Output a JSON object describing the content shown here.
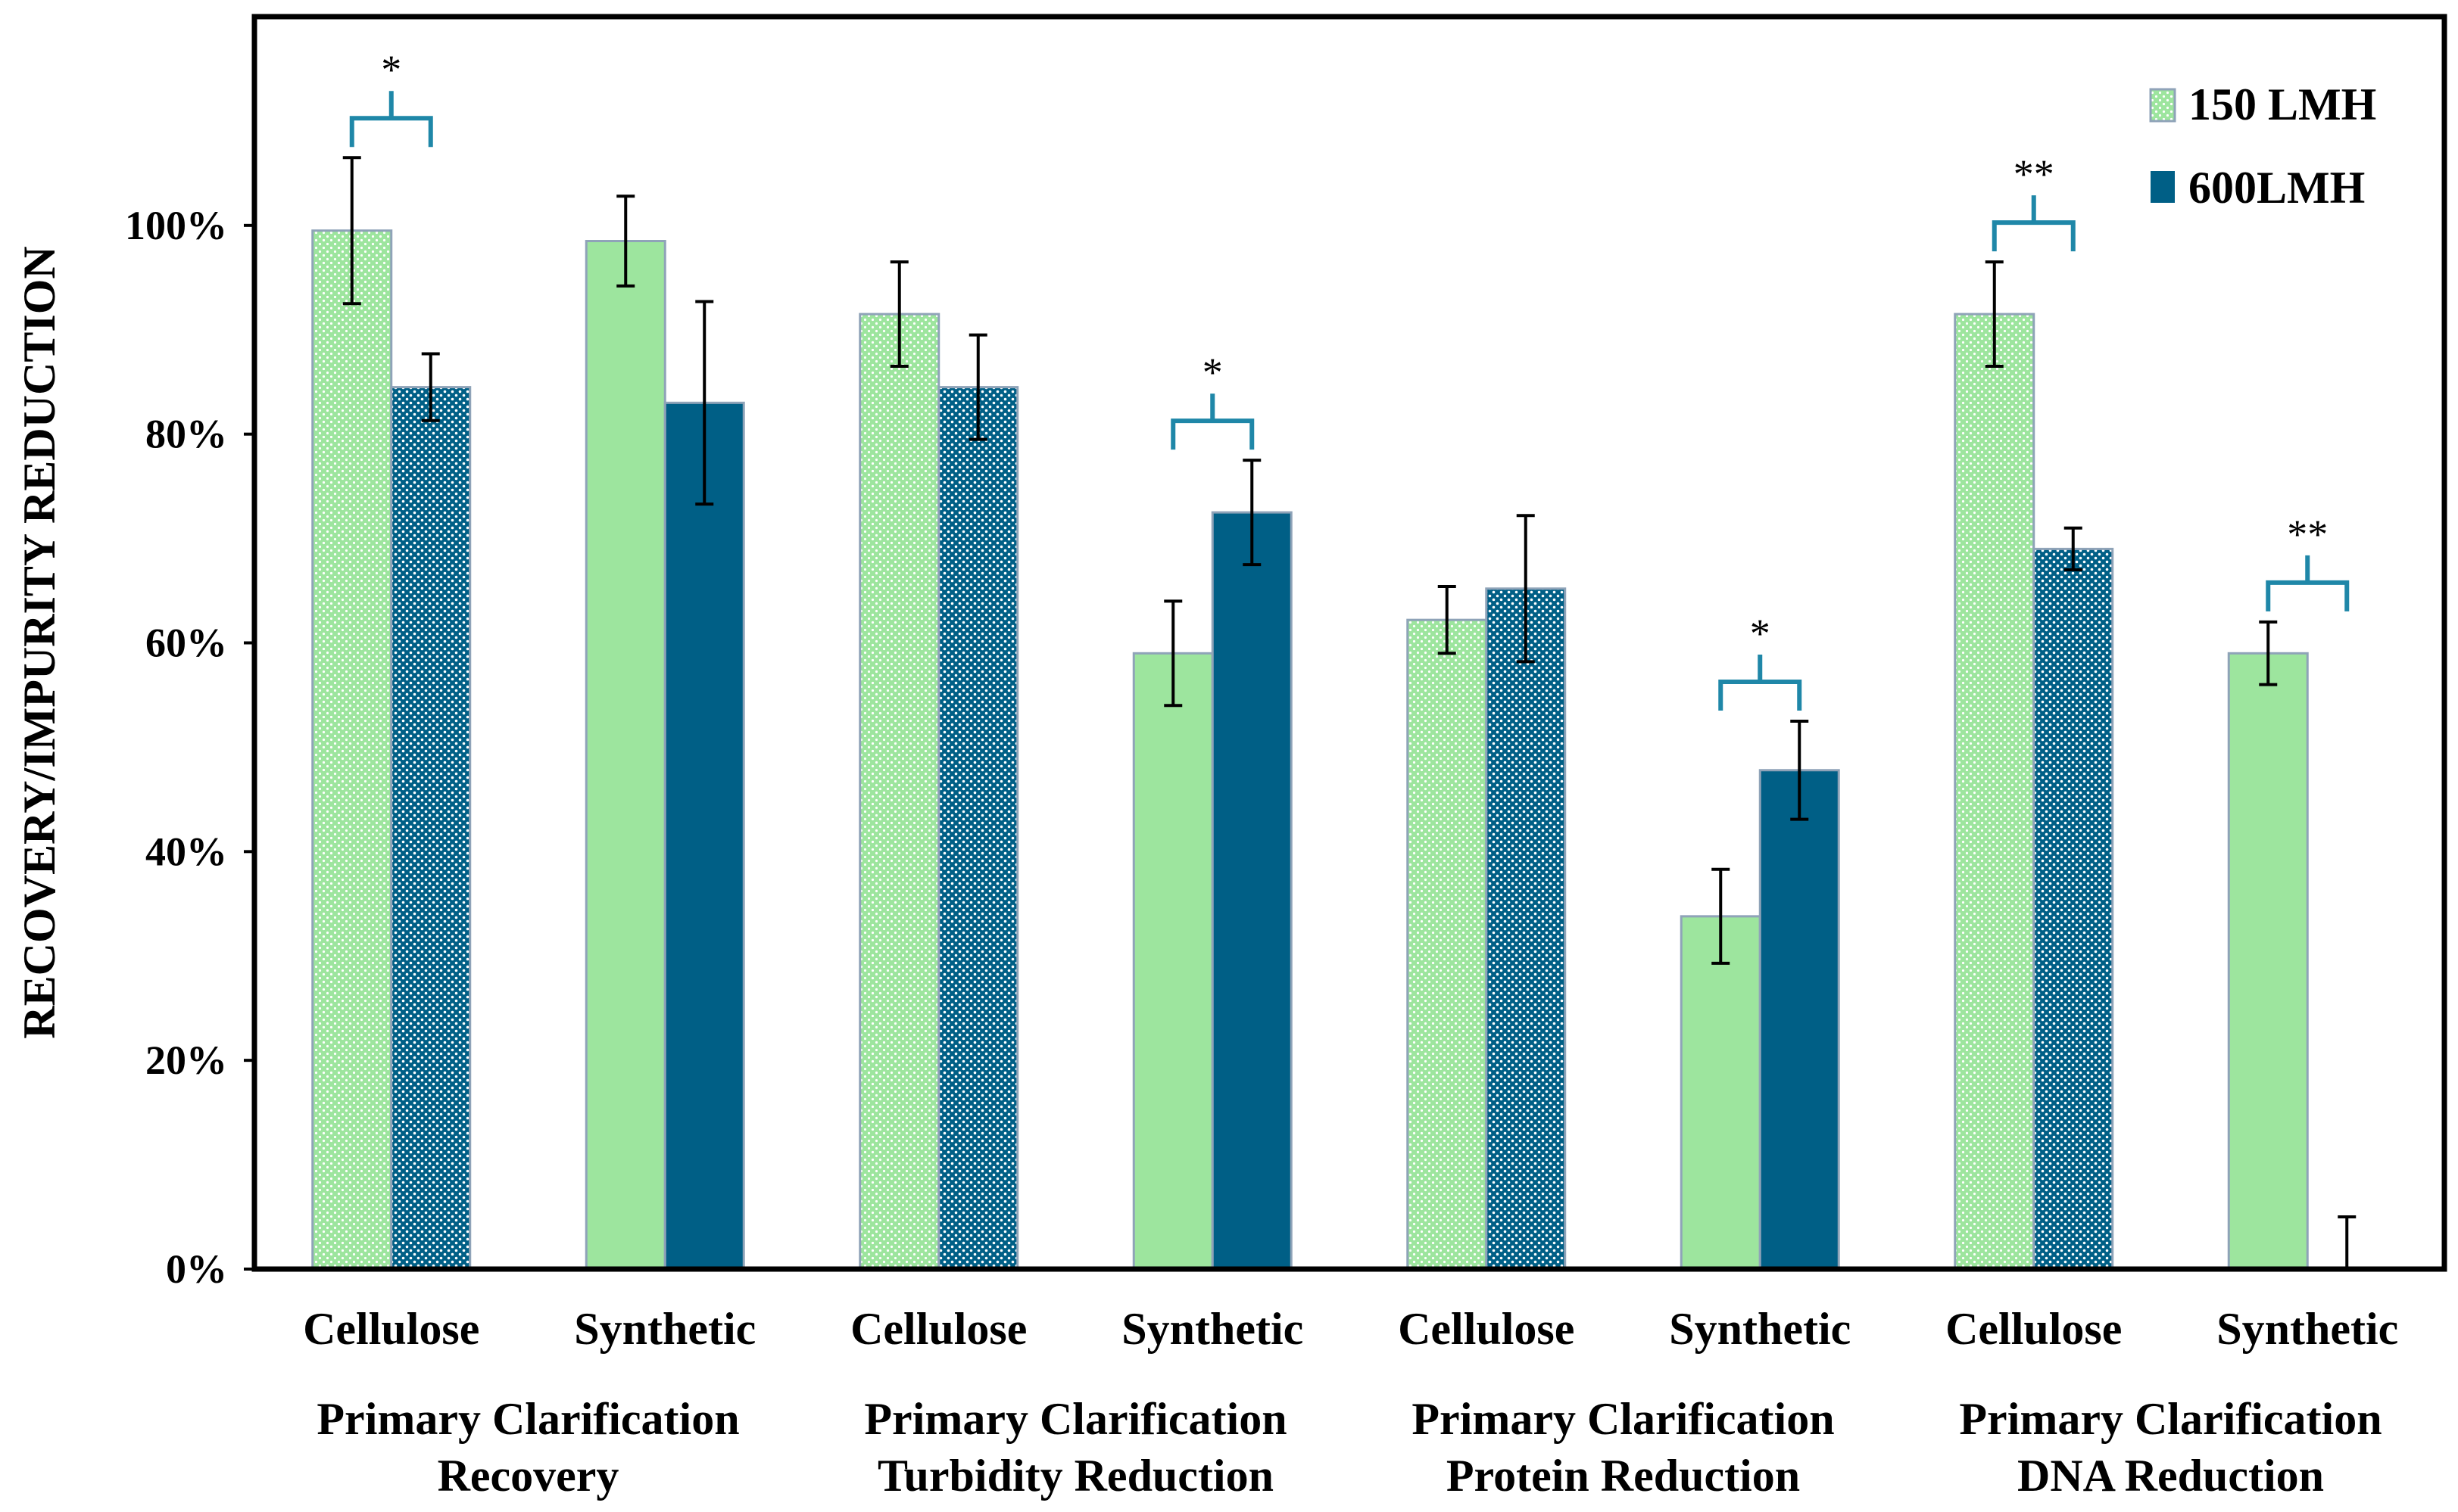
{
  "chart_data": {
    "type": "bar",
    "ylabel": "RECOVERY/IMPURITY REDUCTION",
    "xlabel": "",
    "ylim": [
      0,
      1.2
    ],
    "yticks": [
      "0%",
      "20%",
      "40%",
      "60%",
      "80%",
      "100%"
    ],
    "grid": false,
    "legend_position": "top-right",
    "categories": [
      "Cellulose",
      "Synthetic",
      "Cellulose",
      "Synthetic",
      "Cellulose",
      "Synthetic",
      "Cellulose",
      "Synthetic"
    ],
    "groups": [
      {
        "line1": "Primary Clarification",
        "line2": "Recovery"
      },
      {
        "line1": "Primary Clarification",
        "line2": "Turbidity Reduction"
      },
      {
        "line1": "Primary Clarification",
        "line2": "Protein Reduction"
      },
      {
        "line1": "Primary Clarification",
        "line2": "DNA Reduction"
      }
    ],
    "patterned": [
      true,
      false,
      true,
      false,
      true,
      false,
      true,
      false
    ],
    "series": [
      {
        "name": "150 LMH",
        "color": "#9de59e",
        "values": [
          0.995,
          0.985,
          0.915,
          0.59,
          0.622,
          0.338,
          0.915,
          0.59
        ],
        "errors": [
          0.07,
          0.043,
          0.05,
          0.05,
          0.032,
          0.045,
          0.05,
          0.03
        ]
      },
      {
        "name": "600LMH",
        "color": "#005f86",
        "values": [
          0.845,
          0.83,
          0.845,
          0.725,
          0.652,
          0.478,
          0.69,
          0.0
        ],
        "errors": [
          0.032,
          0.097,
          0.05,
          0.05,
          0.07,
          0.047,
          0.02,
          0.05
        ]
      }
    ],
    "significance": [
      {
        "category_index": 0,
        "label": "*"
      },
      {
        "category_index": 3,
        "label": "*"
      },
      {
        "category_index": 5,
        "label": "*"
      },
      {
        "category_index": 6,
        "label": "**"
      },
      {
        "category_index": 7,
        "label": "**"
      }
    ]
  }
}
